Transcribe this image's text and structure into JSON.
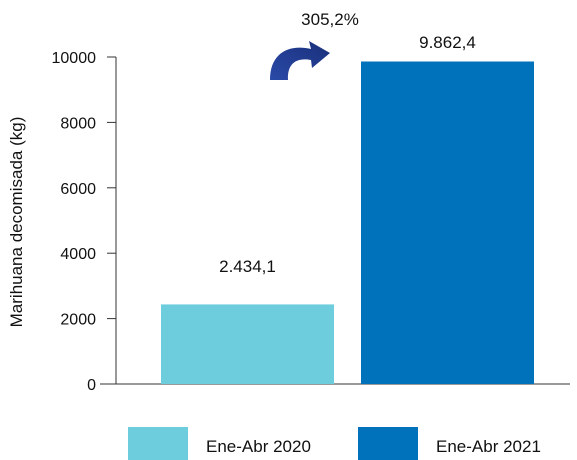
{
  "chart_data": {
    "type": "bar",
    "categories": [
      "Ene-Abr 2020",
      "Ene-Abr 2021"
    ],
    "values": [
      2434.1,
      9862.4
    ],
    "data_labels": [
      "2.434,1",
      "9.862,4"
    ],
    "colors": [
      "#6ecddc",
      "#0072bc"
    ],
    "ylabel": "Marihuana decomisada (kg)",
    "xlabel": "",
    "ylim": [
      0,
      10000
    ],
    "yticks": [
      0,
      2000,
      4000,
      6000,
      8000,
      10000
    ],
    "grid": false,
    "legend": "bottom",
    "annotation": {
      "text": "305,2%",
      "icon": "curved-arrow-icon",
      "color": "#1f3d99"
    }
  }
}
